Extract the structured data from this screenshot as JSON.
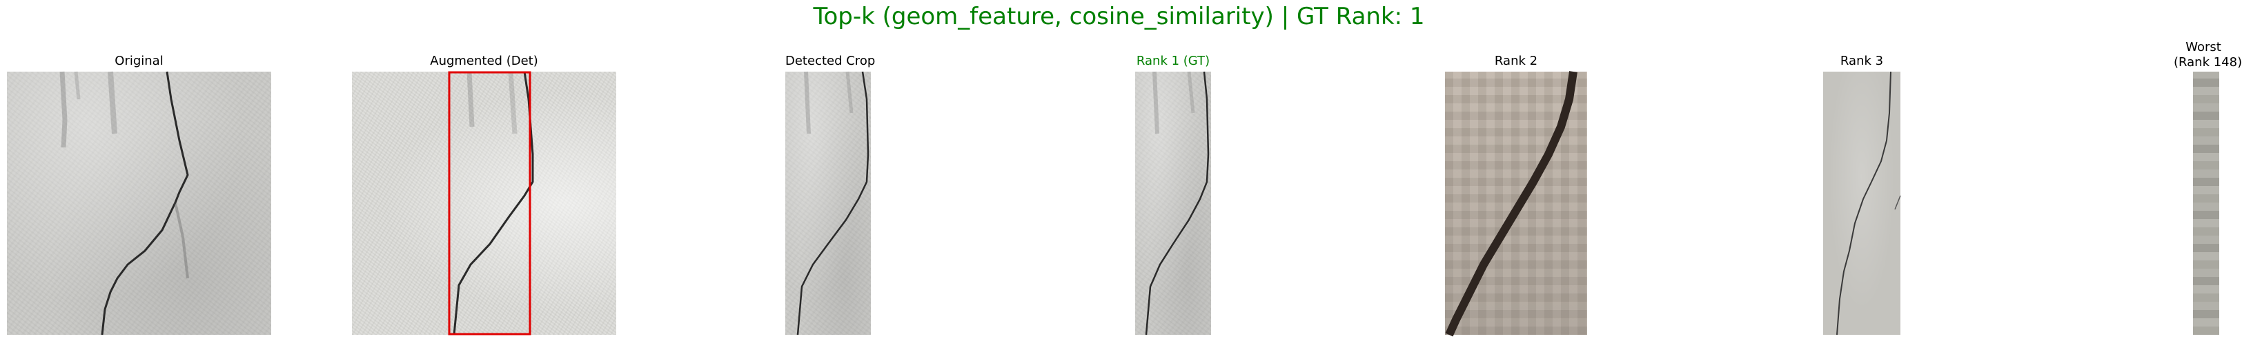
{
  "title": "Top-k (geom_feature, cosine_similarity) | GT Rank: 1",
  "panels": {
    "original": "Original",
    "augmented": "Augmented (Det)",
    "detected": "Detected Crop",
    "rank1": "Rank 1 (GT)",
    "rank2": "Rank 2",
    "rank3": "Rank 3",
    "worst_line1": "Worst",
    "worst_line2": "(Rank 148)"
  },
  "colors": {
    "title": "#008000",
    "gt_label": "#008000",
    "detection_box": "#e00000"
  }
}
